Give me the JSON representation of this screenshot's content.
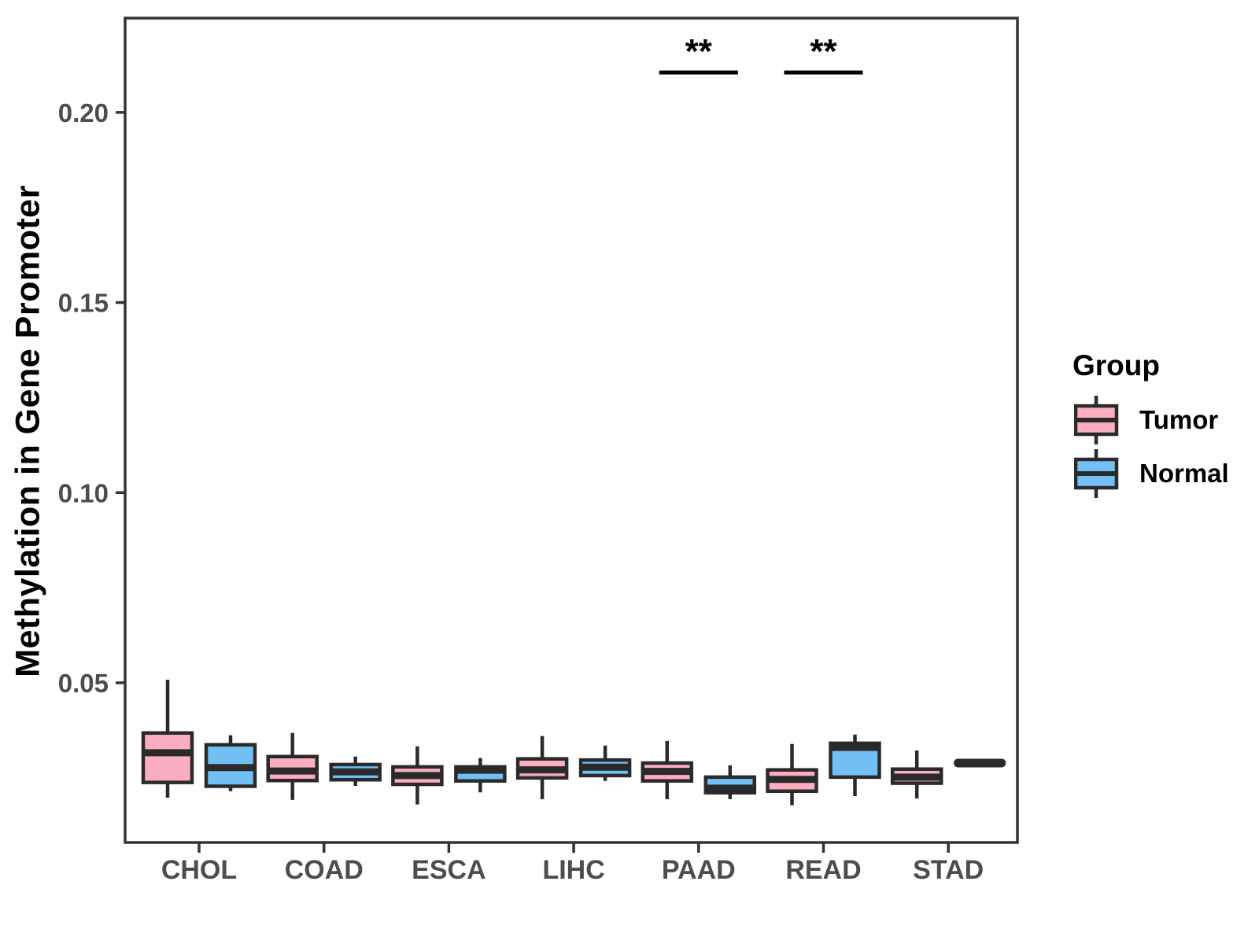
{
  "chart_data": {
    "type": "grouped-boxplot",
    "title": "",
    "xlabel": "",
    "ylabel": "Methylation in Gene Promoter",
    "categories": [
      "CHOL",
      "COAD",
      "ESCA",
      "LIHC",
      "PAAD",
      "READ",
      "STAD"
    ],
    "y_ticks": [
      0.05,
      0.1,
      0.15,
      0.2
    ],
    "y_tick_labels": [
      "0.05",
      "0.10",
      "0.15",
      "0.20"
    ],
    "ylim": [
      0.008,
      0.2248
    ],
    "grid": false,
    "legend_position": "right",
    "groups": [
      {
        "key": "tumor",
        "name": "Tumor",
        "color": "#FAAEC0"
      },
      {
        "key": "normal",
        "name": "Normal",
        "color": "#72BFF5"
      }
    ],
    "stroke_color": "#2A2A2A",
    "axis_text_color": "#4D4D4D",
    "boxes": [
      {
        "category": "CHOL",
        "tumor": {
          "whisker_low": 0.0198,
          "q1": 0.0238,
          "median": 0.0316,
          "q3": 0.0368,
          "whisker_high": 0.0508
        },
        "normal": {
          "whisker_low": 0.0215,
          "q1": 0.0228,
          "median": 0.0277,
          "q3": 0.0337,
          "whisker_high": 0.0362
        }
      },
      {
        "category": "COAD",
        "tumor": {
          "whisker_low": 0.0192,
          "q1": 0.0243,
          "median": 0.0268,
          "q3": 0.0306,
          "whisker_high": 0.0368
        },
        "normal": {
          "whisker_low": 0.0229,
          "q1": 0.0245,
          "median": 0.0266,
          "q3": 0.0285,
          "whisker_high": 0.0306
        }
      },
      {
        "category": "ESCA",
        "tumor": {
          "whisker_low": 0.018,
          "q1": 0.0233,
          "median": 0.0256,
          "q3": 0.0279,
          "whisker_high": 0.0333
        },
        "normal": {
          "whisker_low": 0.0212,
          "q1": 0.0242,
          "median": 0.027,
          "q3": 0.0279,
          "whisker_high": 0.0302
        }
      },
      {
        "category": "LIHC",
        "tumor": {
          "whisker_low": 0.0194,
          "q1": 0.025,
          "median": 0.0271,
          "q3": 0.03,
          "whisker_high": 0.036
        },
        "normal": {
          "whisker_low": 0.0242,
          "q1": 0.0256,
          "median": 0.0278,
          "q3": 0.0297,
          "whisker_high": 0.0335
        }
      },
      {
        "category": "PAAD",
        "tumor": {
          "whisker_low": 0.0194,
          "q1": 0.0242,
          "median": 0.0267,
          "q3": 0.0289,
          "whisker_high": 0.0347
        },
        "normal": {
          "whisker_low": 0.0194,
          "q1": 0.0211,
          "median": 0.0223,
          "q3": 0.0252,
          "whisker_high": 0.0283
        }
      },
      {
        "category": "READ",
        "tumor": {
          "whisker_low": 0.0178,
          "q1": 0.0215,
          "median": 0.0246,
          "q3": 0.0271,
          "whisker_high": 0.0339
        },
        "normal": {
          "whisker_low": 0.0202,
          "q1": 0.0252,
          "median": 0.033,
          "q3": 0.0341,
          "whisker_high": 0.0364
        }
      },
      {
        "category": "STAD",
        "tumor": {
          "whisker_low": 0.0196,
          "q1": 0.0236,
          "median": 0.0252,
          "q3": 0.0273,
          "whisker_high": 0.0322
        },
        "normal": {
          "whisker_low": 0.0289,
          "q1": 0.0289,
          "median": 0.0289,
          "q3": 0.0289,
          "whisker_high": 0.0289
        }
      }
    ],
    "annotations": [
      {
        "label": "**",
        "category": "PAAD",
        "bar_y": 0.2105
      },
      {
        "label": "**",
        "category": "READ",
        "bar_y": 0.2105
      }
    ],
    "legend": {
      "title": "Group",
      "items": [
        {
          "label": "Tumor",
          "color": "#FAAEC0"
        },
        {
          "label": "Normal",
          "color": "#72BFF5"
        }
      ]
    }
  }
}
